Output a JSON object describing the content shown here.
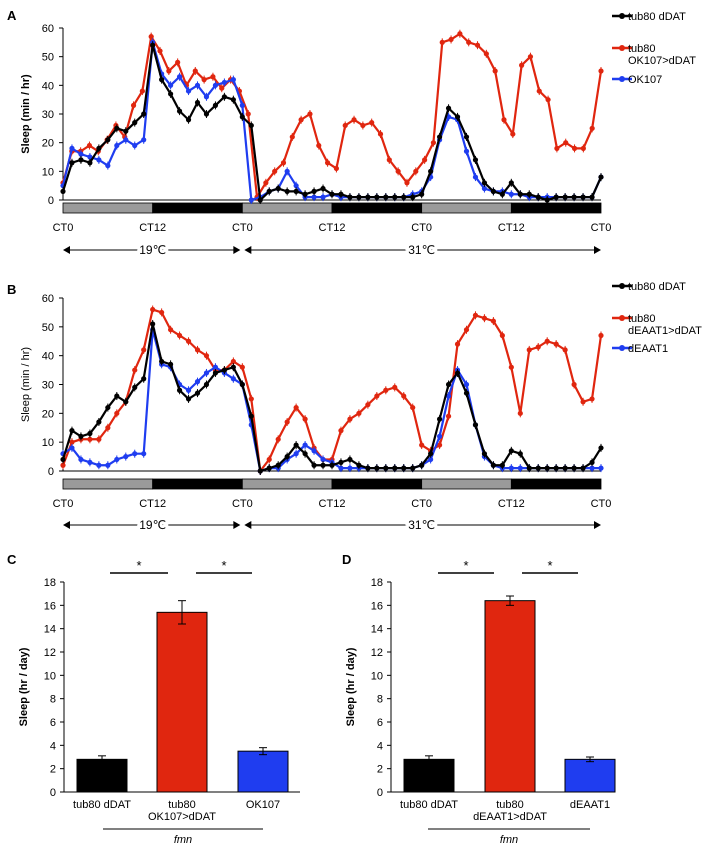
{
  "colors": {
    "black": "#000000",
    "red": "#e0260f",
    "blue": "#1f3df0",
    "gray": "#9a9a9a"
  },
  "chart_data": [
    {
      "panel": "A",
      "type": "line",
      "ylabel": "Sleep (min / hr)",
      "ylim": [
        0,
        60
      ],
      "yticks": [
        0,
        10,
        20,
        30,
        40,
        50,
        60
      ],
      "xticks": [
        "CT0",
        "CT12",
        "CT0",
        "CT12",
        "CT0",
        "CT12",
        "CT0"
      ],
      "temp_labels": [
        "19℃",
        "31℃"
      ],
      "series": [
        {
          "name": "tub80 dDAT",
          "color": "black",
          "values": [
            3,
            13,
            14,
            13,
            18,
            21,
            25,
            24,
            27,
            30,
            54,
            42,
            37,
            31,
            28,
            34,
            30,
            33,
            36,
            35,
            29,
            26,
            0,
            3,
            4,
            3,
            3,
            2,
            3,
            4,
            2,
            2,
            1,
            1,
            1,
            1,
            1,
            1,
            1,
            1,
            2,
            10,
            22,
            32,
            29,
            22,
            14,
            6,
            3,
            2,
            6,
            2,
            2,
            1,
            0,
            1,
            1,
            1,
            1,
            1,
            8
          ]
        },
        {
          "name": "tub80\nOK107>dDAT",
          "color": "red",
          "values": [
            6,
            17,
            17,
            19,
            17,
            21,
            26,
            22,
            33,
            38,
            57,
            52,
            45,
            48,
            40,
            45,
            42,
            43,
            39,
            42,
            38,
            30,
            1,
            6,
            10,
            13,
            22,
            28,
            30,
            19,
            13,
            11,
            26,
            28,
            26,
            27,
            23,
            14,
            10,
            6,
            10,
            14,
            20,
            55,
            56,
            58,
            55,
            54,
            51,
            45,
            28,
            23,
            47,
            50,
            38,
            35,
            18,
            20,
            18,
            18,
            25,
            45
          ]
        },
        {
          "name": "OK107",
          "color": "blue",
          "values": [
            5,
            18,
            16,
            15,
            14,
            12,
            19,
            21,
            19,
            21,
            55,
            44,
            40,
            43,
            38,
            40,
            36,
            40,
            41,
            42,
            33,
            0,
            1,
            3,
            4,
            10,
            5,
            1,
            1,
            1,
            2,
            1,
            1,
            1,
            1,
            1,
            1,
            1,
            1,
            2,
            3,
            8,
            21,
            29,
            28,
            17,
            8,
            4,
            3,
            3,
            2,
            2,
            1,
            1,
            1,
            1,
            1,
            1,
            1,
            1,
            8
          ]
        }
      ]
    },
    {
      "panel": "B",
      "type": "line",
      "ylabel": "Sleep (min / hr)",
      "ylim": [
        0,
        60
      ],
      "yticks": [
        0,
        10,
        20,
        30,
        40,
        50,
        60
      ],
      "xticks": [
        "CT0",
        "CT12",
        "CT0",
        "CT12",
        "CT0",
        "CT12",
        "CT0"
      ],
      "temp_labels": [
        "19℃",
        "31℃"
      ],
      "series": [
        {
          "name": "tub80 dDAT",
          "color": "black",
          "values": [
            4,
            14,
            12,
            13,
            17,
            22,
            26,
            24,
            29,
            32,
            51,
            38,
            37,
            28,
            25,
            27,
            30,
            34,
            35,
            36,
            30,
            19,
            0,
            1,
            2,
            5,
            9,
            6,
            2,
            2,
            2,
            3,
            4,
            2,
            1,
            1,
            1,
            1,
            1,
            1,
            2,
            6,
            18,
            30,
            34,
            27,
            16,
            6,
            2,
            2,
            7,
            6,
            1,
            1,
            1,
            1,
            1,
            1,
            1,
            3,
            8
          ]
        },
        {
          "name": "tub80\ndEAAT1>dDAT",
          "color": "red",
          "values": [
            2,
            10,
            11,
            11,
            11,
            15,
            20,
            24,
            35,
            42,
            56,
            55,
            49,
            47,
            45,
            42,
            40,
            35,
            35,
            38,
            36,
            25,
            0,
            4,
            11,
            17,
            22,
            18,
            8,
            4,
            4,
            14,
            18,
            20,
            23,
            26,
            28,
            29,
            26,
            22,
            9,
            7,
            9,
            19,
            44,
            49,
            54,
            53,
            52,
            47,
            36,
            20,
            42,
            43,
            45,
            44,
            42,
            30,
            24,
            25,
            47
          ]
        },
        {
          "name": "dEAAT1",
          "color": "blue",
          "values": [
            6,
            8,
            4,
            3,
            2,
            2,
            4,
            5,
            6,
            6,
            49,
            37,
            36,
            30,
            28,
            31,
            34,
            36,
            34,
            32,
            30,
            16,
            0,
            1,
            1,
            4,
            6,
            9,
            7,
            4,
            3,
            1,
            1,
            1,
            1,
            1,
            1,
            1,
            1,
            1,
            2,
            4,
            12,
            26,
            35,
            30,
            16,
            5,
            2,
            1,
            1,
            1,
            1,
            1,
            1,
            1,
            1,
            1,
            1,
            1,
            1
          ]
        }
      ]
    },
    {
      "panel": "C",
      "type": "bar",
      "ylabel": "Sleep (hr / day)",
      "ylim": [
        0,
        18
      ],
      "yticks": [
        0,
        2,
        4,
        6,
        8,
        10,
        12,
        14,
        16,
        18
      ],
      "categories": [
        "tub80 dDAT",
        "tub80\nOK107>dDAT",
        "OK107"
      ],
      "values": [
        2.8,
        15.4,
        3.5
      ],
      "errors": [
        0.3,
        1.0,
        0.3
      ],
      "bar_colors": [
        "black",
        "red",
        "blue"
      ],
      "group_label": "fmn",
      "significance": [
        "*",
        "*"
      ]
    },
    {
      "panel": "D",
      "type": "bar",
      "ylabel": "Sleep (hr / day)",
      "ylim": [
        0,
        18
      ],
      "yticks": [
        0,
        2,
        4,
        6,
        8,
        10,
        12,
        14,
        16,
        18
      ],
      "categories": [
        "tub80 dDAT",
        "tub80\ndEAAT1>dDAT",
        "dEAAT1"
      ],
      "values": [
        2.8,
        16.4,
        2.8
      ],
      "errors": [
        0.3,
        0.4,
        0.2
      ],
      "bar_colors": [
        "black",
        "red",
        "blue"
      ],
      "group_label": "fmn",
      "significance": [
        "*",
        "*"
      ]
    }
  ]
}
